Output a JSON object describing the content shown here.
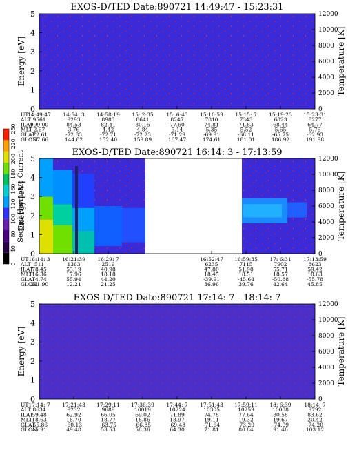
{
  "panel_title_prefix": "EXOS-D/TED",
  "colorbar": {
    "label": "Second Harmonic Current",
    "ticks": [
      "0",
      "40",
      "80",
      "100",
      "120",
      "160",
      "180",
      "200",
      "220",
      "250"
    ],
    "colors": [
      "#000000",
      "#2a004a",
      "#4b0082",
      "#6a1fb0",
      "#3030ff",
      "#00a0ff",
      "#00d0d0",
      "#00c060",
      "#70e000",
      "#e0e000",
      "#ffa000",
      "#ff2000"
    ]
  },
  "orbit_labels": [
    "UT",
    "ALT",
    "ILAT",
    "MLT",
    "GLAT",
    "GLON"
  ],
  "chart_data": [
    {
      "type": "heatmap",
      "title": "EXOS-D/TED  Date:890721  14:49:47 - 15:23:31",
      "ylabel": "Energy [eV]",
      "y2label": "Temperature [K]",
      "ylim": [
        0,
        5
      ],
      "y2lim": [
        0,
        12000
      ],
      "yticks": [
        "0",
        "1",
        "2",
        "3",
        "4",
        "5"
      ],
      "y2ticks": [
        "0",
        "2000",
        "4000",
        "6000",
        "8000",
        "10000",
        "12000"
      ],
      "background": "#3a2ad8",
      "data_segments": [
        [
          0,
          1
        ]
      ],
      "columns": [
        {
          "UT": "14:49:47",
          "ALT": "9561",
          "ILAT": "999.00",
          "MLT": "2.67",
          "GLAT": "-72.61",
          "GLON": "137.66"
        },
        {
          "UT": "14:54: 3",
          "ALT": "9293",
          "ILAT": "84.53",
          "MLT": "3.76",
          "GLAT": "-72.83",
          "GLON": "144.82"
        },
        {
          "UT": "14:58:19",
          "ALT": "8983",
          "ILAT": "82.41",
          "MLT": "4.42",
          "GLAT": "-72.71",
          "GLON": "152.40"
        },
        {
          "UT": "15: 2:35",
          "ALT": "8641",
          "ILAT": "80.15",
          "MLT": "4.84",
          "GLAT": "-72.23",
          "GLON": "159.89"
        },
        {
          "UT": "15: 6:43",
          "ALT": "8247",
          "ILAT": "77.60",
          "MLT": "5.14",
          "GLAT": "-71.29",
          "GLON": "167.47"
        },
        {
          "UT": "15:10:59",
          "ALT": "7810",
          "ILAT": "74.81",
          "MLT": "5.35",
          "GLAT": "-69.91",
          "GLON": "174.61"
        },
        {
          "UT": "15:15: 7",
          "ALT": "7343",
          "ILAT": "71.83",
          "MLT": "5.52",
          "GLAT": "-68.11",
          "GLON": "181.01"
        },
        {
          "UT": "15:19:23",
          "ALT": "6823",
          "ILAT": "68.44",
          "MLT": "5.65",
          "GLAT": "-65.75",
          "GLON": "186.92"
        },
        {
          "UT": "15:23:31",
          "ALT": "6277",
          "ILAT": "64.77",
          "MLT": "5.76",
          "GLAT": "-62.93",
          "GLON": "191.98"
        }
      ]
    },
    {
      "type": "heatmap",
      "title": "EXOS-D/TED  Date:890721  16:14: 3 - 17:13:59",
      "ylabel": "Energy [eV]",
      "y2label": "Temperature [K]",
      "ylim": [
        0,
        5
      ],
      "y2lim": [
        0,
        12000
      ],
      "yticks": [
        "0",
        "1",
        "2",
        "3",
        "4",
        "5"
      ],
      "y2ticks": [
        "0",
        "2000",
        "4000",
        "6000",
        "8000",
        "10000",
        "12000"
      ],
      "background": "#3a2ad8",
      "data_segments": [
        [
          0,
          0.385
        ],
        [
          0.735,
          1
        ]
      ],
      "columns": [
        {
          "UT": "16:14: 3",
          "ALT": "511",
          "ILAT": "78.45",
          "MLT": "16.36",
          "GLAT": "74.74",
          "GLON": "321.90"
        },
        {
          "UT": "16:21:39",
          "ALT": "1363",
          "ILAT": "53.19",
          "MLT": "17.96",
          "GLAT": "55.94",
          "GLON": "12.21"
        },
        {
          "UT": "16:29: 7",
          "ALT": "2519",
          "ILAT": "40.98",
          "MLT": "18.18",
          "GLAT": "44.20",
          "GLON": "21.25"
        },
        {
          "UT": "",
          "ALT": "",
          "ILAT": "",
          "MLT": "",
          "GLAT": "",
          "GLON": ""
        },
        {
          "UT": "",
          "ALT": "",
          "ILAT": "",
          "MLT": "",
          "GLAT": "",
          "GLON": ""
        },
        {
          "UT": "16:52:47",
          "ALT": "6235",
          "ILAT": "47.80",
          "MLT": "18.45",
          "GLAT": "-39.91",
          "GLON": "36.96"
        },
        {
          "UT": "16:59:35",
          "ALT": "7115",
          "ILAT": "51.90",
          "MLT": "18.51",
          "GLAT": "-45.64",
          "GLON": "39.76"
        },
        {
          "UT": "17: 6:31",
          "ALT": "7902",
          "ILAT": "55.71",
          "MLT": "18.57",
          "GLAT": "-50.88",
          "GLON": "42.64"
        },
        {
          "UT": "17:13:59",
          "ALT": "8623",
          "ILAT": "59.42",
          "MLT": "18.63",
          "GLAT": "-55.78",
          "GLON": "45.85"
        }
      ]
    },
    {
      "type": "heatmap",
      "title": "EXOS-D/TED  Date:890721  17:14: 7 - 18:14: 7",
      "ylabel": "Energy [eV]",
      "y2label": "Temperature [K]",
      "ylim": [
        0,
        5
      ],
      "y2lim": [
        0,
        12000
      ],
      "yticks": [
        "0",
        "1",
        "2",
        "3",
        "4",
        "5"
      ],
      "y2ticks": [
        "0",
        "2000",
        "4000",
        "6000",
        "8000",
        "10000",
        "12000"
      ],
      "background": "#4a30c8",
      "data_segments": [
        [
          0,
          1
        ]
      ],
      "columns": [
        {
          "UT": "17:14: 7",
          "ALT": "8634",
          "ILAT": "59.48",
          "MLT": "18.63",
          "GLAT": "-55.86",
          "GLON": "45.91"
        },
        {
          "UT": "17:21:43",
          "ALT": "9232",
          "ILAT": "62.92",
          "MLT": "18.70",
          "GLAT": "-60.13",
          "GLON": "49.48"
        },
        {
          "UT": "17:29:11",
          "ALT": "9689",
          "ILAT": "66.05",
          "MLT": "18.77",
          "GLAT": "-63.75",
          "GLON": "53.53"
        },
        {
          "UT": "17:36:39",
          "ALT": "10019",
          "ILAT": "69.02",
          "MLT": "18.86",
          "GLAT": "-66.85",
          "GLON": "58.36"
        },
        {
          "UT": "17:44: 7",
          "ALT": "10224",
          "ILAT": "71.89",
          "MLT": "18.97",
          "GLAT": "-69.48",
          "GLON": "64.30"
        },
        {
          "UT": "17:51:43",
          "ALT": "10305",
          "ILAT": "74.78",
          "MLT": "19.11",
          "GLAT": "-71.64",
          "GLON": "71.81"
        },
        {
          "UT": "17:59:11",
          "ALT": "10259",
          "ILAT": "77.64",
          "MLT": "19.32",
          "GLAT": "-73.20",
          "GLON": "80.84"
        },
        {
          "UT": "18: 6:39",
          "ALT": "10088",
          "ILAT": "80.58",
          "MLT": "19.67",
          "GLAT": "-74.09",
          "GLON": "91.46"
        },
        {
          "UT": "18:14: 7",
          "ALT": "9792",
          "ILAT": "83.62",
          "MLT": "20.42",
          "GLAT": "-74.20",
          "GLON": "103.12"
        }
      ]
    }
  ]
}
